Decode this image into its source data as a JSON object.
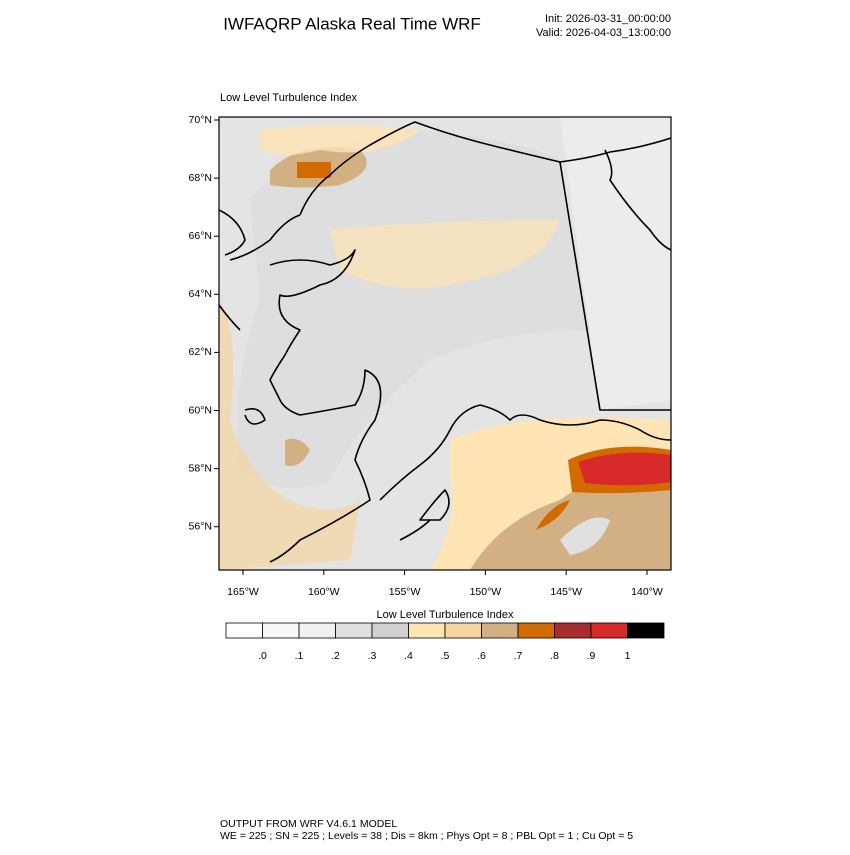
{
  "header": {
    "title": "IWFAQRP Alaska Real Time WRF",
    "init": "Init: 2026-03-31_00:00:00",
    "valid": "Valid: 2026-04-03_13:00:00"
  },
  "map": {
    "title": "Low Level Turbulence Index",
    "lat_labels": [
      "70°N",
      "68°N",
      "66°N",
      "64°N",
      "62°N",
      "60°N",
      "58°N",
      "56°N"
    ],
    "lon_labels": [
      "165°W",
      "160°W",
      "155°W",
      "150°W",
      "145°W",
      "140°W"
    ]
  },
  "colorbar": {
    "title": "Low Level Turbulence Index",
    "colors": [
      "#ffffff",
      "#f8f8f8",
      "#f0f0f0",
      "#e0e0e0",
      "#d0d0d0",
      "#ffe4b4",
      "#f5d6a2",
      "#d2b083",
      "#d26a00",
      "#a82e2e",
      "#d82a2a",
      "#000000"
    ],
    "ticks": [
      {
        "value": 0,
        "label": ".0"
      },
      {
        "value": 0.1,
        "label": ".1"
      },
      {
        "value": 0.2,
        "label": ".2"
      },
      {
        "value": 0.3,
        "label": ".3"
      },
      {
        "value": 0.4,
        "label": ".4"
      },
      {
        "value": 0.5,
        "label": ".5"
      },
      {
        "value": 0.6,
        "label": ".6"
      },
      {
        "value": 0.7,
        "label": ".7"
      },
      {
        "value": 0.8,
        "label": ".8"
      },
      {
        "value": 0.9,
        "label": ".9"
      },
      {
        "value": 1,
        "label": "1"
      }
    ]
  },
  "footer": {
    "line1": "OUTPUT FROM WRF V4.6.1 MODEL",
    "line2": "WE = 225 ; SN = 225 ; Levels = 38 ; Dis = 8km ; Phys Opt = 8 ; PBL Opt = 1 ; Cu Opt = 5"
  }
}
